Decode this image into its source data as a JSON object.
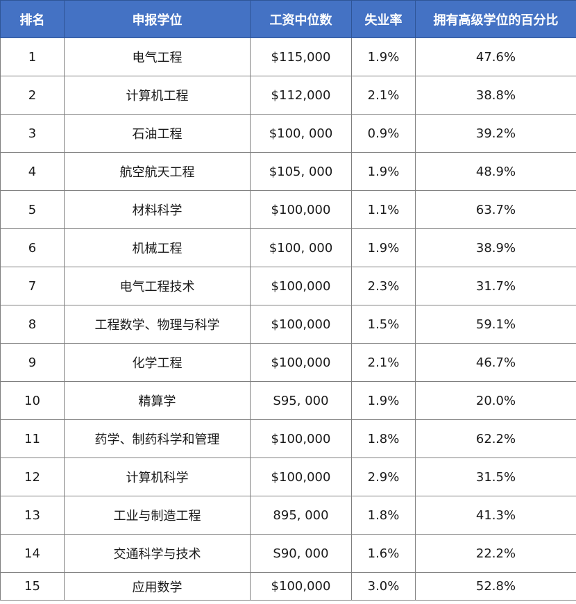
{
  "table": {
    "headers": [
      "排名",
      "申报学位",
      "工资中位数",
      "失业率",
      "拥有高级学位的百分比"
    ],
    "rows": [
      [
        "1",
        "电气工程",
        "$115,000",
        "1.9%",
        "47.6%"
      ],
      [
        "2",
        "计算机工程",
        "$112,000",
        "2.1%",
        "38.8%"
      ],
      [
        "3",
        "石油工程",
        "$100, 000",
        "0.9%",
        "39.2%"
      ],
      [
        "4",
        "航空航天工程",
        "$105, 000",
        "1.9%",
        "48.9%"
      ],
      [
        "5",
        "材料科学",
        "$100,000",
        "1.1%",
        "63.7%"
      ],
      [
        "6",
        "机械工程",
        "$100, 000",
        "1.9%",
        "38.9%"
      ],
      [
        "7",
        "电气工程技术",
        "$100,000",
        "2.3%",
        "31.7%"
      ],
      [
        "8",
        "工程数学、物理与科学",
        "$100,000",
        "1.5%",
        "59.1%"
      ],
      [
        "9",
        "化学工程",
        "$100,000",
        "2.1%",
        "46.7%"
      ],
      [
        "10",
        "精算学",
        "S95, 000",
        "1.9%",
        "20.0%"
      ],
      [
        "11",
        "药学、制药科学和管理",
        "$100,000",
        "1.8%",
        "62.2%"
      ],
      [
        "12",
        "计算机科学",
        "$100,000",
        "2.9%",
        "31.5%"
      ],
      [
        "13",
        "工业与制造工程",
        "895, 000",
        "1.8%",
        "41.3%"
      ],
      [
        "14",
        "交通科学与技术",
        "S90, 000",
        "1.6%",
        "22.2%"
      ],
      [
        "15",
        "应用数学",
        "$100,000",
        "3.0%",
        "52.8%"
      ]
    ]
  },
  "colors": {
    "header_bg": "#4472c4",
    "header_text": "#ffffff",
    "cell_text": "#1a1a1a",
    "border": "#7f7f7f"
  }
}
